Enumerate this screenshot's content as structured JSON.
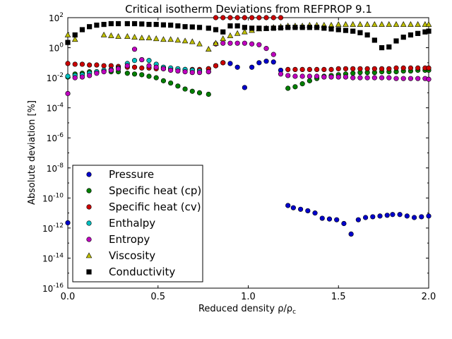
{
  "chart_data": {
    "type": "scatter",
    "title": "Critical isotherm Deviations from REFPROP 9.1",
    "xlabel": "Reduced density ρ/ρ",
    "xlabel_sub": "c",
    "ylabel": "Absolute deviation [%]",
    "xlim": [
      0.0,
      2.0
    ],
    "ylim_log10": [
      -16,
      2
    ],
    "yscale": "log",
    "x_ticks": [
      {
        "value": 0.0,
        "label": "0.0"
      },
      {
        "value": 0.5,
        "label": "0.5"
      },
      {
        "value": 1.0,
        "label": "1.0"
      },
      {
        "value": 1.5,
        "label": "1.5"
      },
      {
        "value": 2.0,
        "label": "2.0"
      }
    ],
    "y_ticks": [
      {
        "exp": 2,
        "label_base": "10",
        "label_exp": "2"
      },
      {
        "exp": 0,
        "label_base": "10",
        "label_exp": "0"
      },
      {
        "exp": -2,
        "label_base": "10",
        "label_exp": "-2"
      },
      {
        "exp": -4,
        "label_base": "10",
        "label_exp": "-4"
      },
      {
        "exp": -6,
        "label_base": "10",
        "label_exp": "-6"
      },
      {
        "exp": -8,
        "label_base": "10",
        "label_exp": "-8"
      },
      {
        "exp": -10,
        "label_base": "10",
        "label_exp": "-10"
      },
      {
        "exp": -12,
        "label_base": "10",
        "label_exp": "-12"
      },
      {
        "exp": -14,
        "label_base": "10",
        "label_exp": "-14"
      },
      {
        "exp": -16,
        "label_base": "10",
        "label_exp": "-16"
      }
    ],
    "grid": false,
    "legend_position": "bottom-left",
    "series": [
      {
        "name": "Pressure",
        "marker": "circle",
        "color": "#0000cc",
        "x": [
          0.0,
          0.04,
          0.78,
          0.82,
          0.86,
          0.9,
          0.94,
          0.98,
          1.02,
          1.06,
          1.1,
          1.14,
          1.18,
          1.22,
          1.25,
          1.29,
          1.33,
          1.37,
          1.41,
          1.45,
          1.49,
          1.53,
          1.57,
          1.61,
          1.65,
          1.69,
          1.73,
          1.77,
          1.8,
          1.84,
          1.88,
          1.92,
          1.96,
          2.0
        ],
        "y_log10": [
          -11.65,
          -11.1,
          -1.4,
          -1.2,
          -1.0,
          -1.05,
          -1.3,
          -2.65,
          -1.3,
          -1.0,
          -0.9,
          -0.95,
          -1.5,
          -10.5,
          -10.65,
          -10.75,
          -10.85,
          -11.0,
          -11.35,
          -11.4,
          -11.45,
          -11.7,
          -12.4,
          -11.45,
          -11.3,
          -11.25,
          -11.2,
          -11.15,
          -11.1,
          -11.1,
          -11.2,
          -11.3,
          -11.25,
          -11.2
        ]
      },
      {
        "name": "Specific heat (cp)",
        "marker": "circle",
        "color": "#007f00",
        "x": [
          0.0,
          0.04,
          0.08,
          0.12,
          0.16,
          0.2,
          0.24,
          0.28,
          0.33,
          0.37,
          0.41,
          0.45,
          0.49,
          0.53,
          0.57,
          0.61,
          0.65,
          0.69,
          0.73,
          0.78,
          1.22,
          1.26,
          1.3,
          1.34,
          1.38,
          1.42,
          1.46,
          1.5,
          1.54,
          1.58,
          1.62,
          1.66,
          1.7,
          1.74,
          1.78,
          1.82,
          1.86,
          1.9,
          1.94,
          1.98,
          2.0
        ],
        "y_log10": [
          -1.95,
          -1.75,
          -1.7,
          -1.6,
          -1.6,
          -1.55,
          -1.6,
          -1.6,
          -1.7,
          -1.75,
          -1.8,
          -1.9,
          -2.0,
          -2.2,
          -2.35,
          -2.55,
          -2.75,
          -2.9,
          -3.0,
          -3.1,
          -2.7,
          -2.6,
          -2.4,
          -2.2,
          -2.05,
          -1.9,
          -1.85,
          -1.8,
          -1.75,
          -1.7,
          -1.65,
          -1.65,
          -1.65,
          -1.6,
          -1.6,
          -1.6,
          -1.55,
          -1.55,
          -1.5,
          -1.5,
          -1.5
        ]
      },
      {
        "name": "Specific heat (cv)",
        "marker": "circle",
        "color": "#cc0000",
        "x": [
          0.0,
          0.04,
          0.08,
          0.12,
          0.16,
          0.2,
          0.24,
          0.28,
          0.33,
          0.37,
          0.41,
          0.45,
          0.49,
          0.53,
          0.57,
          0.61,
          0.65,
          0.69,
          0.73,
          0.78,
          0.82,
          0.86,
          0.82,
          0.86,
          0.9,
          0.94,
          0.98,
          1.02,
          1.06,
          1.1,
          1.14,
          1.18,
          1.22,
          1.26,
          1.3,
          1.34,
          1.38,
          1.42,
          1.46,
          1.5,
          1.54,
          1.58,
          1.62,
          1.66,
          1.7,
          1.74,
          1.78,
          1.82,
          1.86,
          1.9,
          1.94,
          1.98,
          2.0
        ],
        "y_log10": [
          -1.05,
          -1.1,
          -1.1,
          -1.15,
          -1.15,
          -1.2,
          -1.2,
          -1.25,
          -1.3,
          -1.3,
          -1.35,
          -1.35,
          -1.4,
          -1.4,
          -1.4,
          -1.45,
          -1.45,
          -1.45,
          -1.45,
          -1.4,
          -1.2,
          -1.0,
          2.0,
          2.0,
          2.0,
          2.0,
          2.0,
          2.0,
          2.0,
          2.0,
          2.0,
          2.0,
          -1.45,
          -1.45,
          -1.45,
          -1.45,
          -1.45,
          -1.45,
          -1.45,
          -1.4,
          -1.4,
          -1.4,
          -1.4,
          -1.4,
          -1.4,
          -1.4,
          -1.4,
          -1.35,
          -1.35,
          -1.35,
          -1.35,
          -1.35,
          -1.35
        ]
      },
      {
        "name": "Enthalpy",
        "marker": "circle",
        "color": "#00bfbf",
        "x": [
          0.0,
          0.04,
          0.08,
          0.12,
          0.16,
          0.2,
          0.24,
          0.28,
          0.33,
          0.37,
          0.41,
          0.45,
          0.49,
          0.53,
          0.57,
          0.61,
          0.65,
          0.69,
          0.73,
          0.78
        ],
        "y_log10": [
          -1.9,
          -1.85,
          -1.8,
          -1.7,
          -1.6,
          -1.5,
          -1.45,
          -1.35,
          -1.05,
          -0.85,
          -0.8,
          -0.85,
          -1.1,
          -1.3,
          -1.35,
          -1.4,
          -1.45,
          -1.5,
          -1.55,
          -1.6
        ]
      },
      {
        "name": "Entropy",
        "marker": "circle",
        "color": "#bf00bf",
        "x": [
          0.0,
          0.04,
          0.08,
          0.12,
          0.16,
          0.2,
          0.24,
          0.28,
          0.33,
          0.37,
          0.41,
          0.45,
          0.49,
          0.53,
          0.57,
          0.61,
          0.65,
          0.69,
          0.73,
          0.78,
          0.82,
          0.86,
          0.9,
          0.94,
          0.98,
          1.02,
          1.06,
          1.1,
          1.14,
          1.18,
          1.22,
          1.26,
          1.3,
          1.34,
          1.38,
          1.42,
          1.46,
          1.5,
          1.54,
          1.58,
          1.62,
          1.66,
          1.7,
          1.74,
          1.78,
          1.82,
          1.86,
          1.9,
          1.94,
          1.98,
          2.0
        ],
        "y_log10": [
          -3.05,
          -2.0,
          -1.95,
          -1.85,
          -1.7,
          -1.6,
          -1.5,
          -1.4,
          -1.2,
          -0.1,
          -0.8,
          -1.2,
          -1.3,
          -1.4,
          -1.5,
          -1.55,
          -1.6,
          -1.65,
          -1.65,
          -1.6,
          0.25,
          0.3,
          0.3,
          0.3,
          0.3,
          0.25,
          0.2,
          -0.05,
          -0.45,
          -1.75,
          -1.85,
          -1.9,
          -1.9,
          -1.9,
          -1.9,
          -1.95,
          -1.95,
          -1.95,
          -1.95,
          -2.0,
          -2.0,
          -2.0,
          -2.0,
          -2.0,
          -2.0,
          -2.05,
          -2.05,
          -2.05,
          -2.05,
          -2.05,
          -2.1
        ]
      },
      {
        "name": "Viscosity",
        "marker": "triangle",
        "color": "#bfbf00",
        "x": [
          0.0,
          0.04,
          0.2,
          0.24,
          0.28,
          0.33,
          0.37,
          0.41,
          0.45,
          0.49,
          0.53,
          0.57,
          0.61,
          0.65,
          0.69,
          0.73,
          0.78,
          0.82,
          0.86,
          0.9,
          0.94,
          0.98,
          1.02,
          1.06,
          1.1,
          1.14,
          1.18,
          1.22,
          1.26,
          1.3,
          1.34,
          1.38,
          1.42,
          1.46,
          1.5,
          1.54,
          1.58,
          1.62,
          1.66,
          1.7,
          1.74,
          1.78,
          1.82,
          1.86,
          1.9,
          1.94,
          1.98,
          2.0
        ],
        "y_log10": [
          0.85,
          0.55,
          0.85,
          0.8,
          0.75,
          0.75,
          0.7,
          0.65,
          0.65,
          0.6,
          0.55,
          0.55,
          0.5,
          0.45,
          0.4,
          0.25,
          -0.1,
          0.3,
          0.6,
          0.8,
          0.95,
          1.05,
          1.15,
          1.25,
          1.3,
          1.35,
          1.4,
          1.45,
          1.45,
          1.45,
          1.5,
          1.5,
          1.5,
          1.5,
          1.55,
          1.55,
          1.55,
          1.55,
          1.55,
          1.55,
          1.55,
          1.55,
          1.55,
          1.55,
          1.55,
          1.55,
          1.55,
          1.55
        ]
      },
      {
        "name": "Conductivity",
        "marker": "square",
        "color": "#000000",
        "x": [
          0.0,
          0.04,
          0.08,
          0.12,
          0.16,
          0.2,
          0.24,
          0.28,
          0.33,
          0.37,
          0.41,
          0.45,
          0.49,
          0.53,
          0.57,
          0.61,
          0.65,
          0.69,
          0.73,
          0.78,
          0.82,
          0.86,
          0.9,
          0.94,
          0.98,
          1.02,
          1.06,
          1.1,
          1.14,
          1.18,
          1.22,
          1.26,
          1.3,
          1.34,
          1.38,
          1.42,
          1.46,
          1.5,
          1.54,
          1.58,
          1.62,
          1.66,
          1.7,
          1.74,
          1.78,
          1.82,
          1.86,
          1.9,
          1.94,
          1.98,
          2.0
        ],
        "y_log10": [
          0.35,
          0.85,
          1.2,
          1.4,
          1.5,
          1.55,
          1.6,
          1.6,
          1.6,
          1.6,
          1.58,
          1.55,
          1.55,
          1.52,
          1.5,
          1.45,
          1.4,
          1.38,
          1.35,
          1.3,
          1.2,
          1.05,
          1.45,
          1.45,
          1.35,
          1.3,
          1.3,
          1.28,
          1.3,
          1.32,
          1.35,
          1.35,
          1.35,
          1.35,
          1.35,
          1.3,
          1.25,
          1.2,
          1.15,
          1.1,
          1.0,
          0.85,
          0.5,
          0.0,
          0.05,
          0.45,
          0.7,
          0.85,
          0.95,
          1.05,
          1.1
        ]
      }
    ]
  }
}
